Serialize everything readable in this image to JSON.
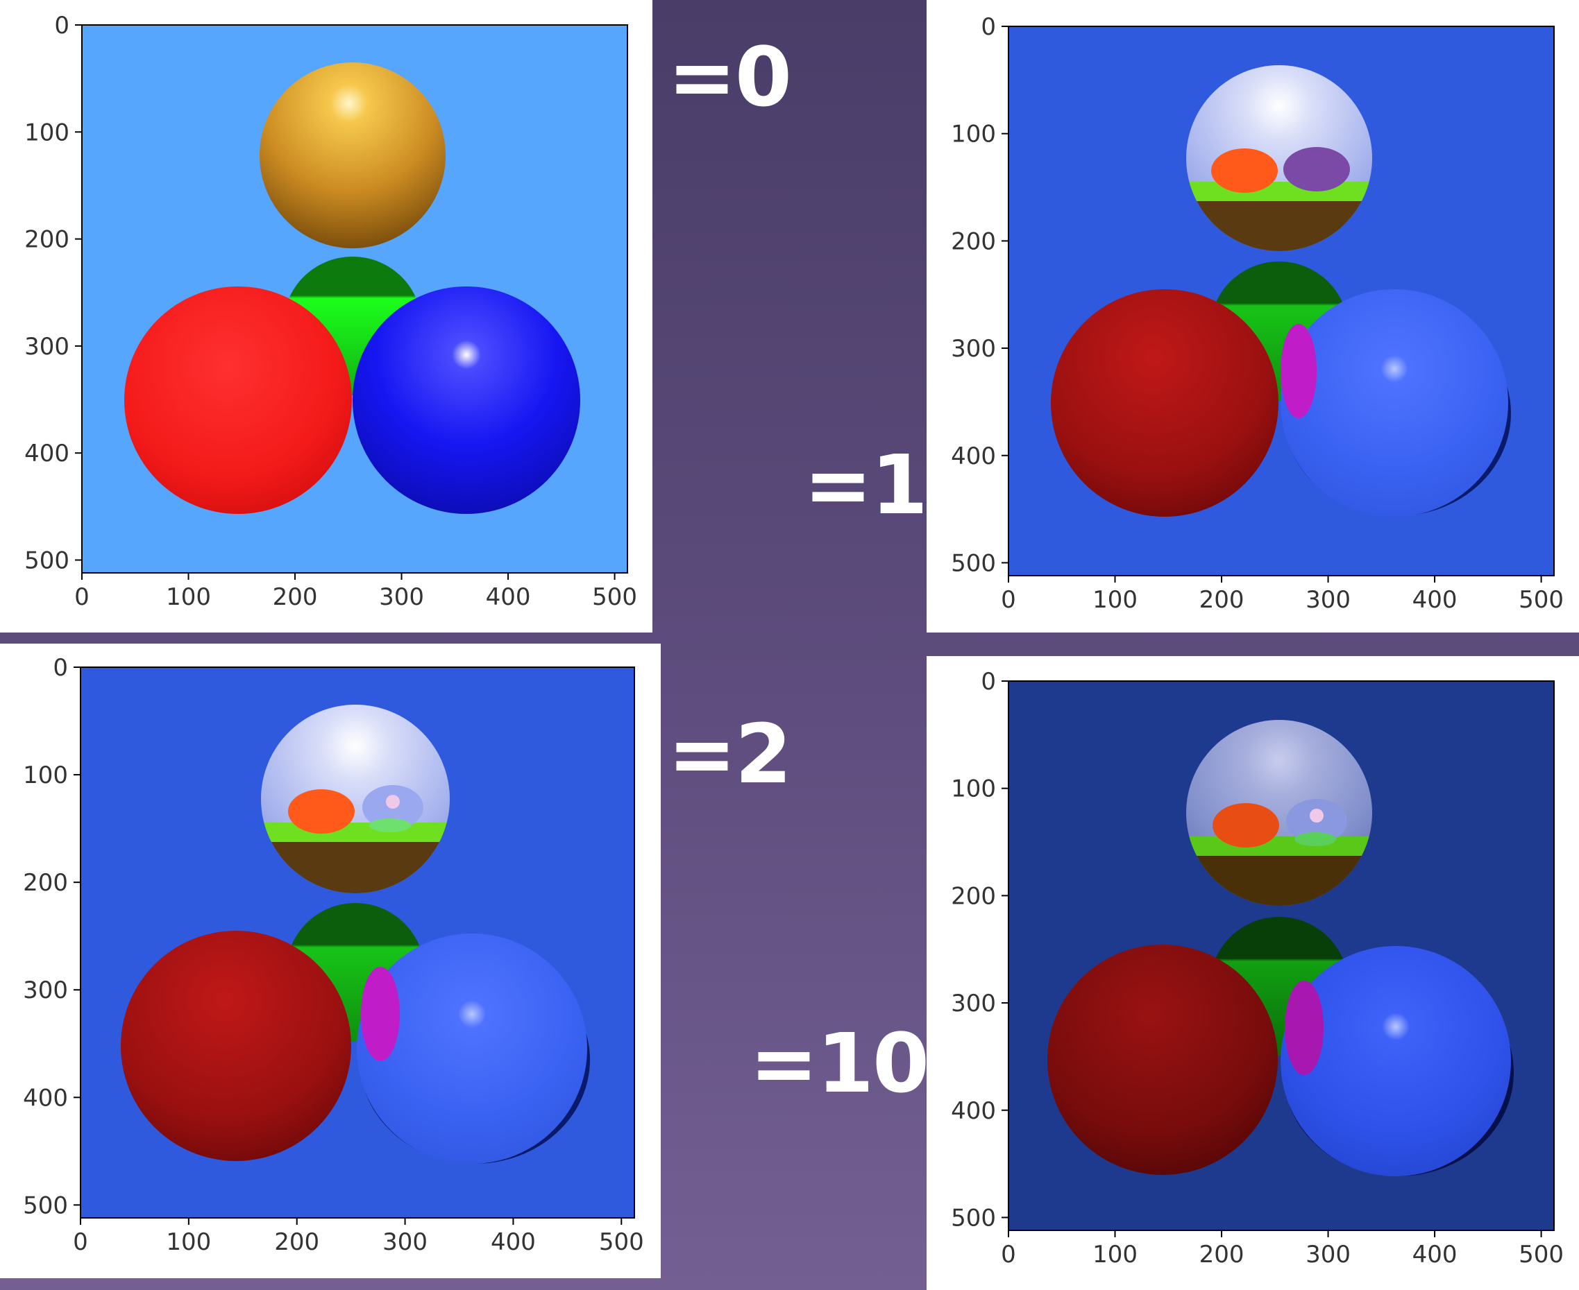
{
  "labels": {
    "depth0": "=0",
    "depth1": "=1",
    "depth2": "=2",
    "depth10": "=10"
  },
  "axes": {
    "x_ticks": [
      "0",
      "100",
      "200",
      "300",
      "400",
      "500"
    ],
    "y_ticks": [
      "0",
      "100",
      "200",
      "300",
      "400",
      "500"
    ]
  },
  "colors": {
    "background": "#55367a",
    "sky_depth0": "#55a6fc",
    "sky_depth1": "#2f5ade",
    "sky_depth2": "#2f5ade",
    "sky_depth10": "#1e3a8f",
    "sphere_gold": "#e0a23a",
    "sphere_red": "#ff2020",
    "sphere_blue": "#1414f0",
    "sphere_green": "#1fb21f",
    "sphere_glass": "#b8c4f4"
  }
}
